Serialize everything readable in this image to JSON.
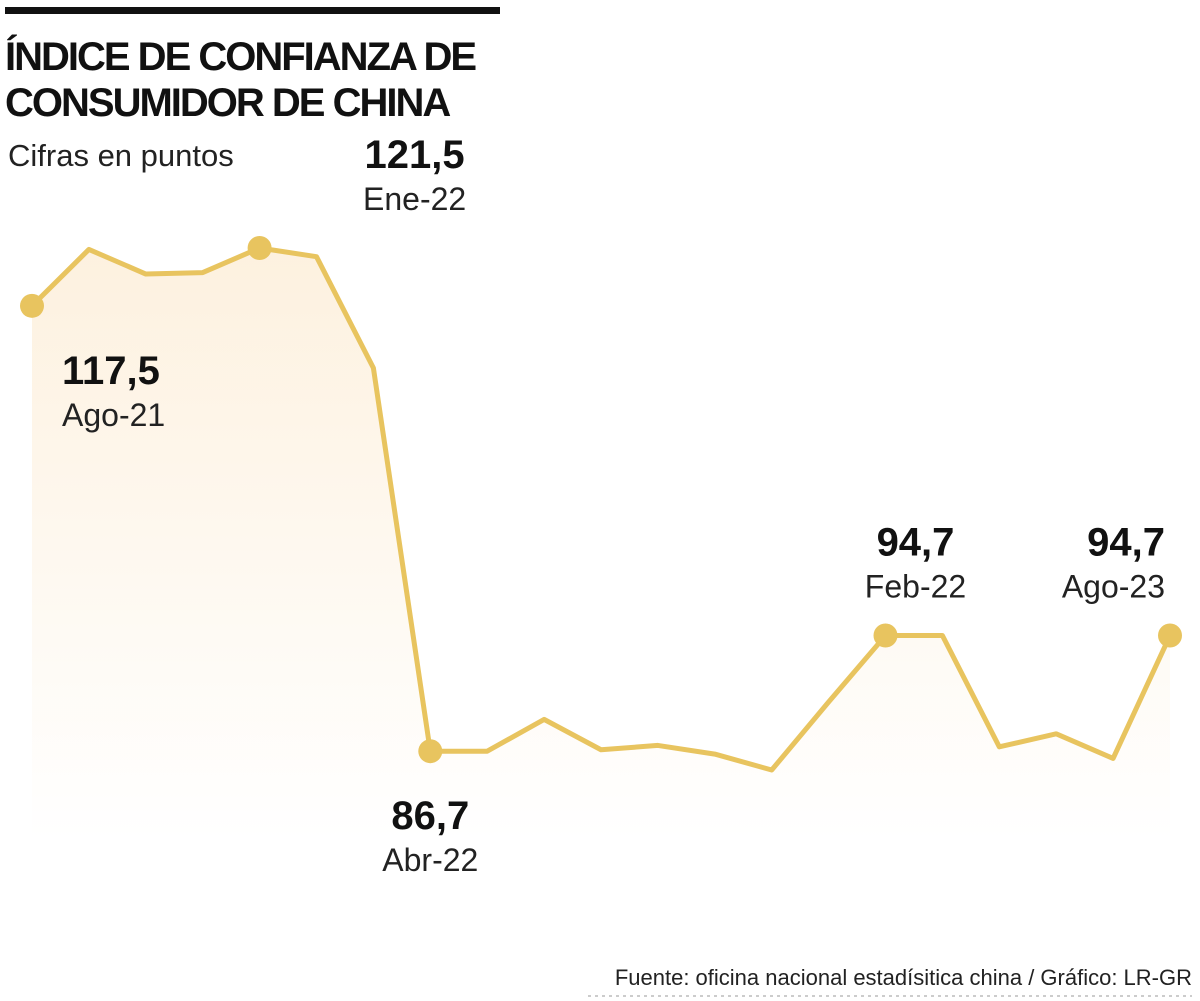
{
  "chart_data": {
    "type": "line",
    "title": "ÍNDICE DE CONFIANZA DE CONSUMIDOR DE CHINA",
    "subtitle": "Cifras en puntos",
    "source": "Fuente: oficina nacional estadísitica china / Gráfico: LR-GR",
    "color": "#e8c45f",
    "categories": [
      "Ago-21",
      null,
      null,
      null,
      "Ene-22",
      null,
      null,
      "Abr-22",
      null,
      null,
      null,
      null,
      null,
      null,
      null,
      "Feb-22",
      null,
      null,
      null,
      null,
      "Ago-23"
    ],
    "values": [
      117.5,
      121.4,
      119.7,
      119.8,
      121.5,
      120.9,
      113.2,
      86.7,
      86.7,
      88.9,
      86.8,
      87.1,
      86.5,
      85.4,
      90.1,
      94.7,
      94.7,
      87.0,
      87.9,
      86.2,
      94.7
    ],
    "value_labels": [
      "117,5",
      null,
      null,
      null,
      "121,5",
      null,
      null,
      "86,7",
      null,
      null,
      null,
      null,
      null,
      null,
      null,
      "94,7",
      null,
      null,
      null,
      null,
      "94,7"
    ]
  }
}
